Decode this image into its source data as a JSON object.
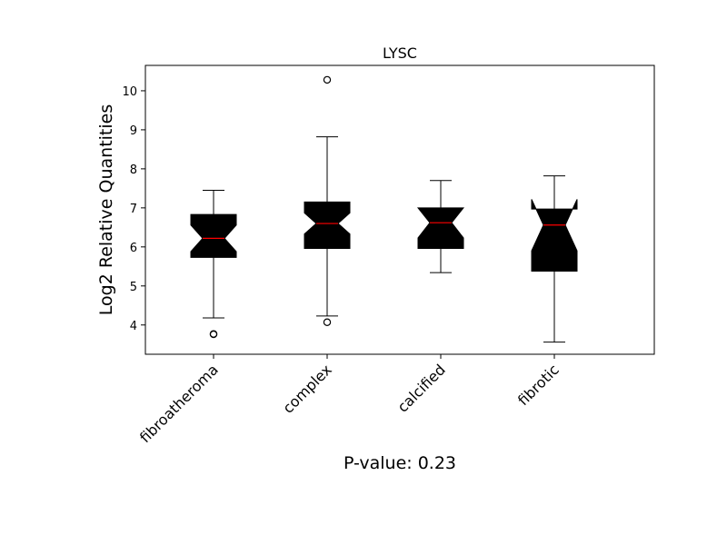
{
  "chart_data": {
    "type": "box",
    "title": "LYSC",
    "ylabel": "Log2 Relative Quantities",
    "xlabel": "P-value: 0.23",
    "ylim": [
      3.25,
      10.65
    ],
    "yticks": [
      4,
      5,
      6,
      7,
      8,
      9,
      10
    ],
    "categories": [
      "fibroatheroma",
      "complex",
      "calcified",
      "fibrotic"
    ],
    "notched": true,
    "grid": false,
    "box_color": "#000000",
    "median_color": "#ff0000",
    "boxes": [
      {
        "category": "fibroatheroma",
        "whisker_low": 4.18,
        "q1": 5.73,
        "median": 6.22,
        "q3": 6.83,
        "whisker_high": 7.45,
        "notch_low": 5.88,
        "notch_high": 6.56,
        "outliers": [
          3.77,
          3.76
        ]
      },
      {
        "category": "complex",
        "whisker_low": 4.23,
        "q1": 5.96,
        "median": 6.6,
        "q3": 7.15,
        "whisker_high": 8.82,
        "notch_low": 6.33,
        "notch_high": 6.87,
        "outliers": [
          4.07,
          10.28
        ]
      },
      {
        "category": "calcified",
        "whisker_low": 5.34,
        "q1": 5.96,
        "median": 6.62,
        "q3": 7.0,
        "whisker_high": 7.7,
        "notch_low": 6.23,
        "notch_high": 7.0,
        "outliers": []
      },
      {
        "category": "fibrotic",
        "whisker_low": 3.56,
        "q1": 5.38,
        "median": 6.56,
        "q3": 6.97,
        "whisker_high": 7.82,
        "notch_low": 5.9,
        "notch_high": 7.22,
        "outliers": []
      }
    ]
  }
}
